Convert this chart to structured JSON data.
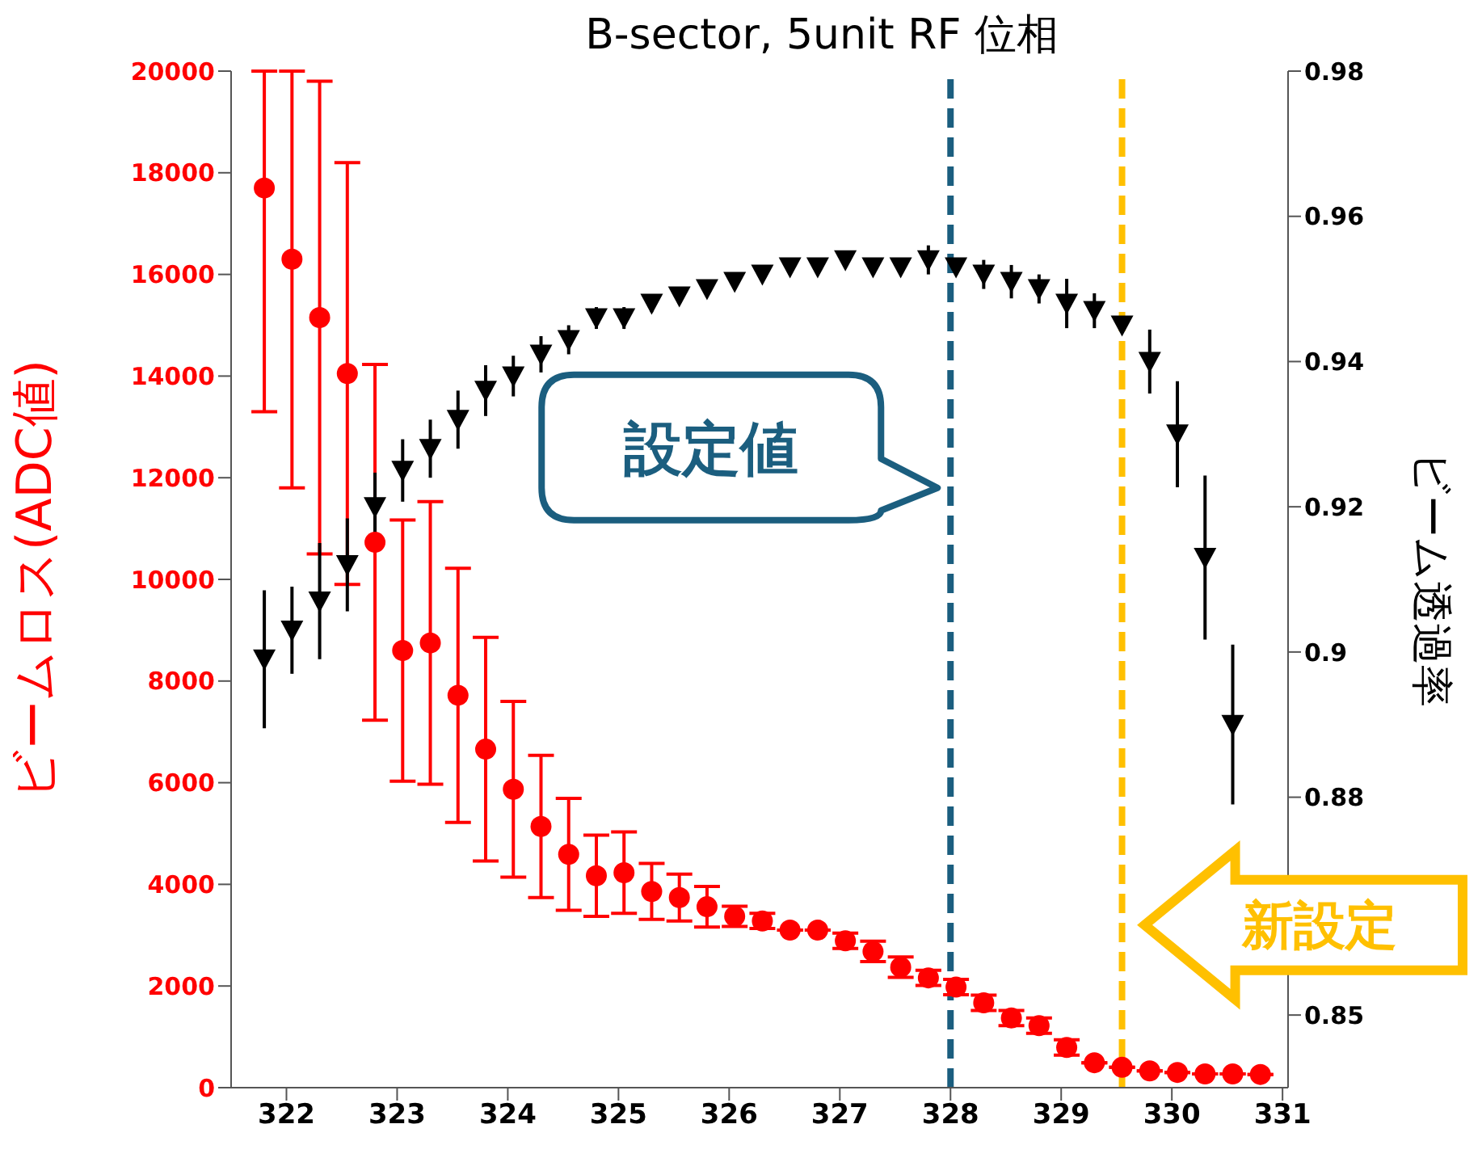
{
  "chart_data": {
    "type": "scatter",
    "title": "B-sector, 5unit RF 位相",
    "ylabel": "ビームロス(ADC値)",
    "y2label": "ビーム透過率",
    "x": [
      321.8,
      322.05,
      322.3,
      322.55,
      322.8,
      323.05,
      323.3,
      323.55,
      323.8,
      324.05,
      324.3,
      324.55,
      324.8,
      325.05,
      325.3,
      325.55,
      325.8,
      326.05,
      326.3,
      326.55,
      326.8,
      327.05,
      327.3,
      327.55,
      327.8,
      328.05,
      328.3,
      328.55,
      328.8,
      329.05,
      329.3,
      329.55,
      329.8,
      330.05,
      330.3,
      330.55,
      330.8
    ],
    "series": [
      {
        "color": "#ff0000",
        "marker": "circle",
        "values": [
          17700,
          16300,
          15150,
          14050,
          10730,
          8600,
          8750,
          7720,
          6660,
          5870,
          5140,
          4590,
          4170,
          4230,
          3860,
          3740,
          3560,
          3370,
          3280,
          3100,
          3100,
          2890,
          2680,
          2370,
          2160,
          1980,
          1670,
          1370,
          1220,
          790,
          490,
          400,
          330,
          300,
          270,
          270,
          260
        ],
        "errors": [
          [
            13300,
            20000
          ],
          [
            11800,
            20000
          ],
          4650,
          4150,
          3500,
          2570,
          2780,
          2500,
          2200,
          1730,
          1400,
          1100,
          800,
          800,
          550,
          460,
          400,
          200,
          150,
          null,
          null,
          150,
          200,
          200,
          150,
          150,
          150,
          150,
          150,
          150,
          null,
          null,
          null,
          null,
          null,
          null,
          null
        ]
      },
      {
        "color": "#000000",
        "marker": "triangle",
        "axis": "y2",
        "values": [
          0.899,
          0.903,
          0.907,
          0.912,
          0.92,
          0.925,
          0.928,
          0.932,
          0.936,
          0.938,
          0.941,
          0.943,
          0.946,
          0.946,
          0.948,
          0.949,
          0.95,
          0.951,
          0.952,
          0.953,
          0.953,
          0.954,
          0.953,
          0.953,
          0.954,
          0.953,
          0.952,
          0.951,
          0.95,
          0.948,
          0.947,
          0.945,
          0.94,
          0.93,
          0.913,
          0.89,
          null
        ],
        "errors": [
          0.0095,
          0.006,
          0.008,
          0.0064,
          0.0047,
          0.0043,
          0.004,
          0.004,
          0.0035,
          0.0028,
          0.0025,
          0.002,
          0.0015,
          0.0015,
          0.0012,
          0.001,
          0.001,
          0.001,
          0.001,
          0.001,
          0.001,
          0.001,
          0.001,
          0.001,
          0.002,
          0.001,
          0.002,
          0.0023,
          0.002,
          0.0034,
          0.0024,
          0.001,
          0.0044,
          0.0073,
          0.0113,
          0.011,
          null
        ]
      }
    ],
    "xlim": [
      321.5,
      331.05
    ],
    "xticks": [
      322,
      323,
      324,
      325,
      326,
      327,
      328,
      329,
      330,
      331
    ],
    "ylim": [
      0,
      20000
    ],
    "yticks": [
      0,
      2000,
      4000,
      6000,
      8000,
      10000,
      12000,
      14000,
      16000,
      18000,
      20000
    ],
    "y2lim": [
      0.84,
      0.98
    ],
    "y2ticks": [
      0.85,
      0.88,
      0.9,
      0.92,
      0.94,
      0.96,
      0.98
    ],
    "ref_lines": [
      {
        "axis": "x",
        "value": 328,
        "color": "#1b5e7f",
        "line_style": "dashed"
      },
      {
        "axis": "x",
        "value": 329.55,
        "color": "#ffc000",
        "line_style": "dashed"
      }
    ],
    "annotations": [
      {
        "text": "設定値",
        "x": 328,
        "y": 11800
      },
      {
        "text": "新設定",
        "x": 329.55,
        "y": 3200
      }
    ]
  }
}
